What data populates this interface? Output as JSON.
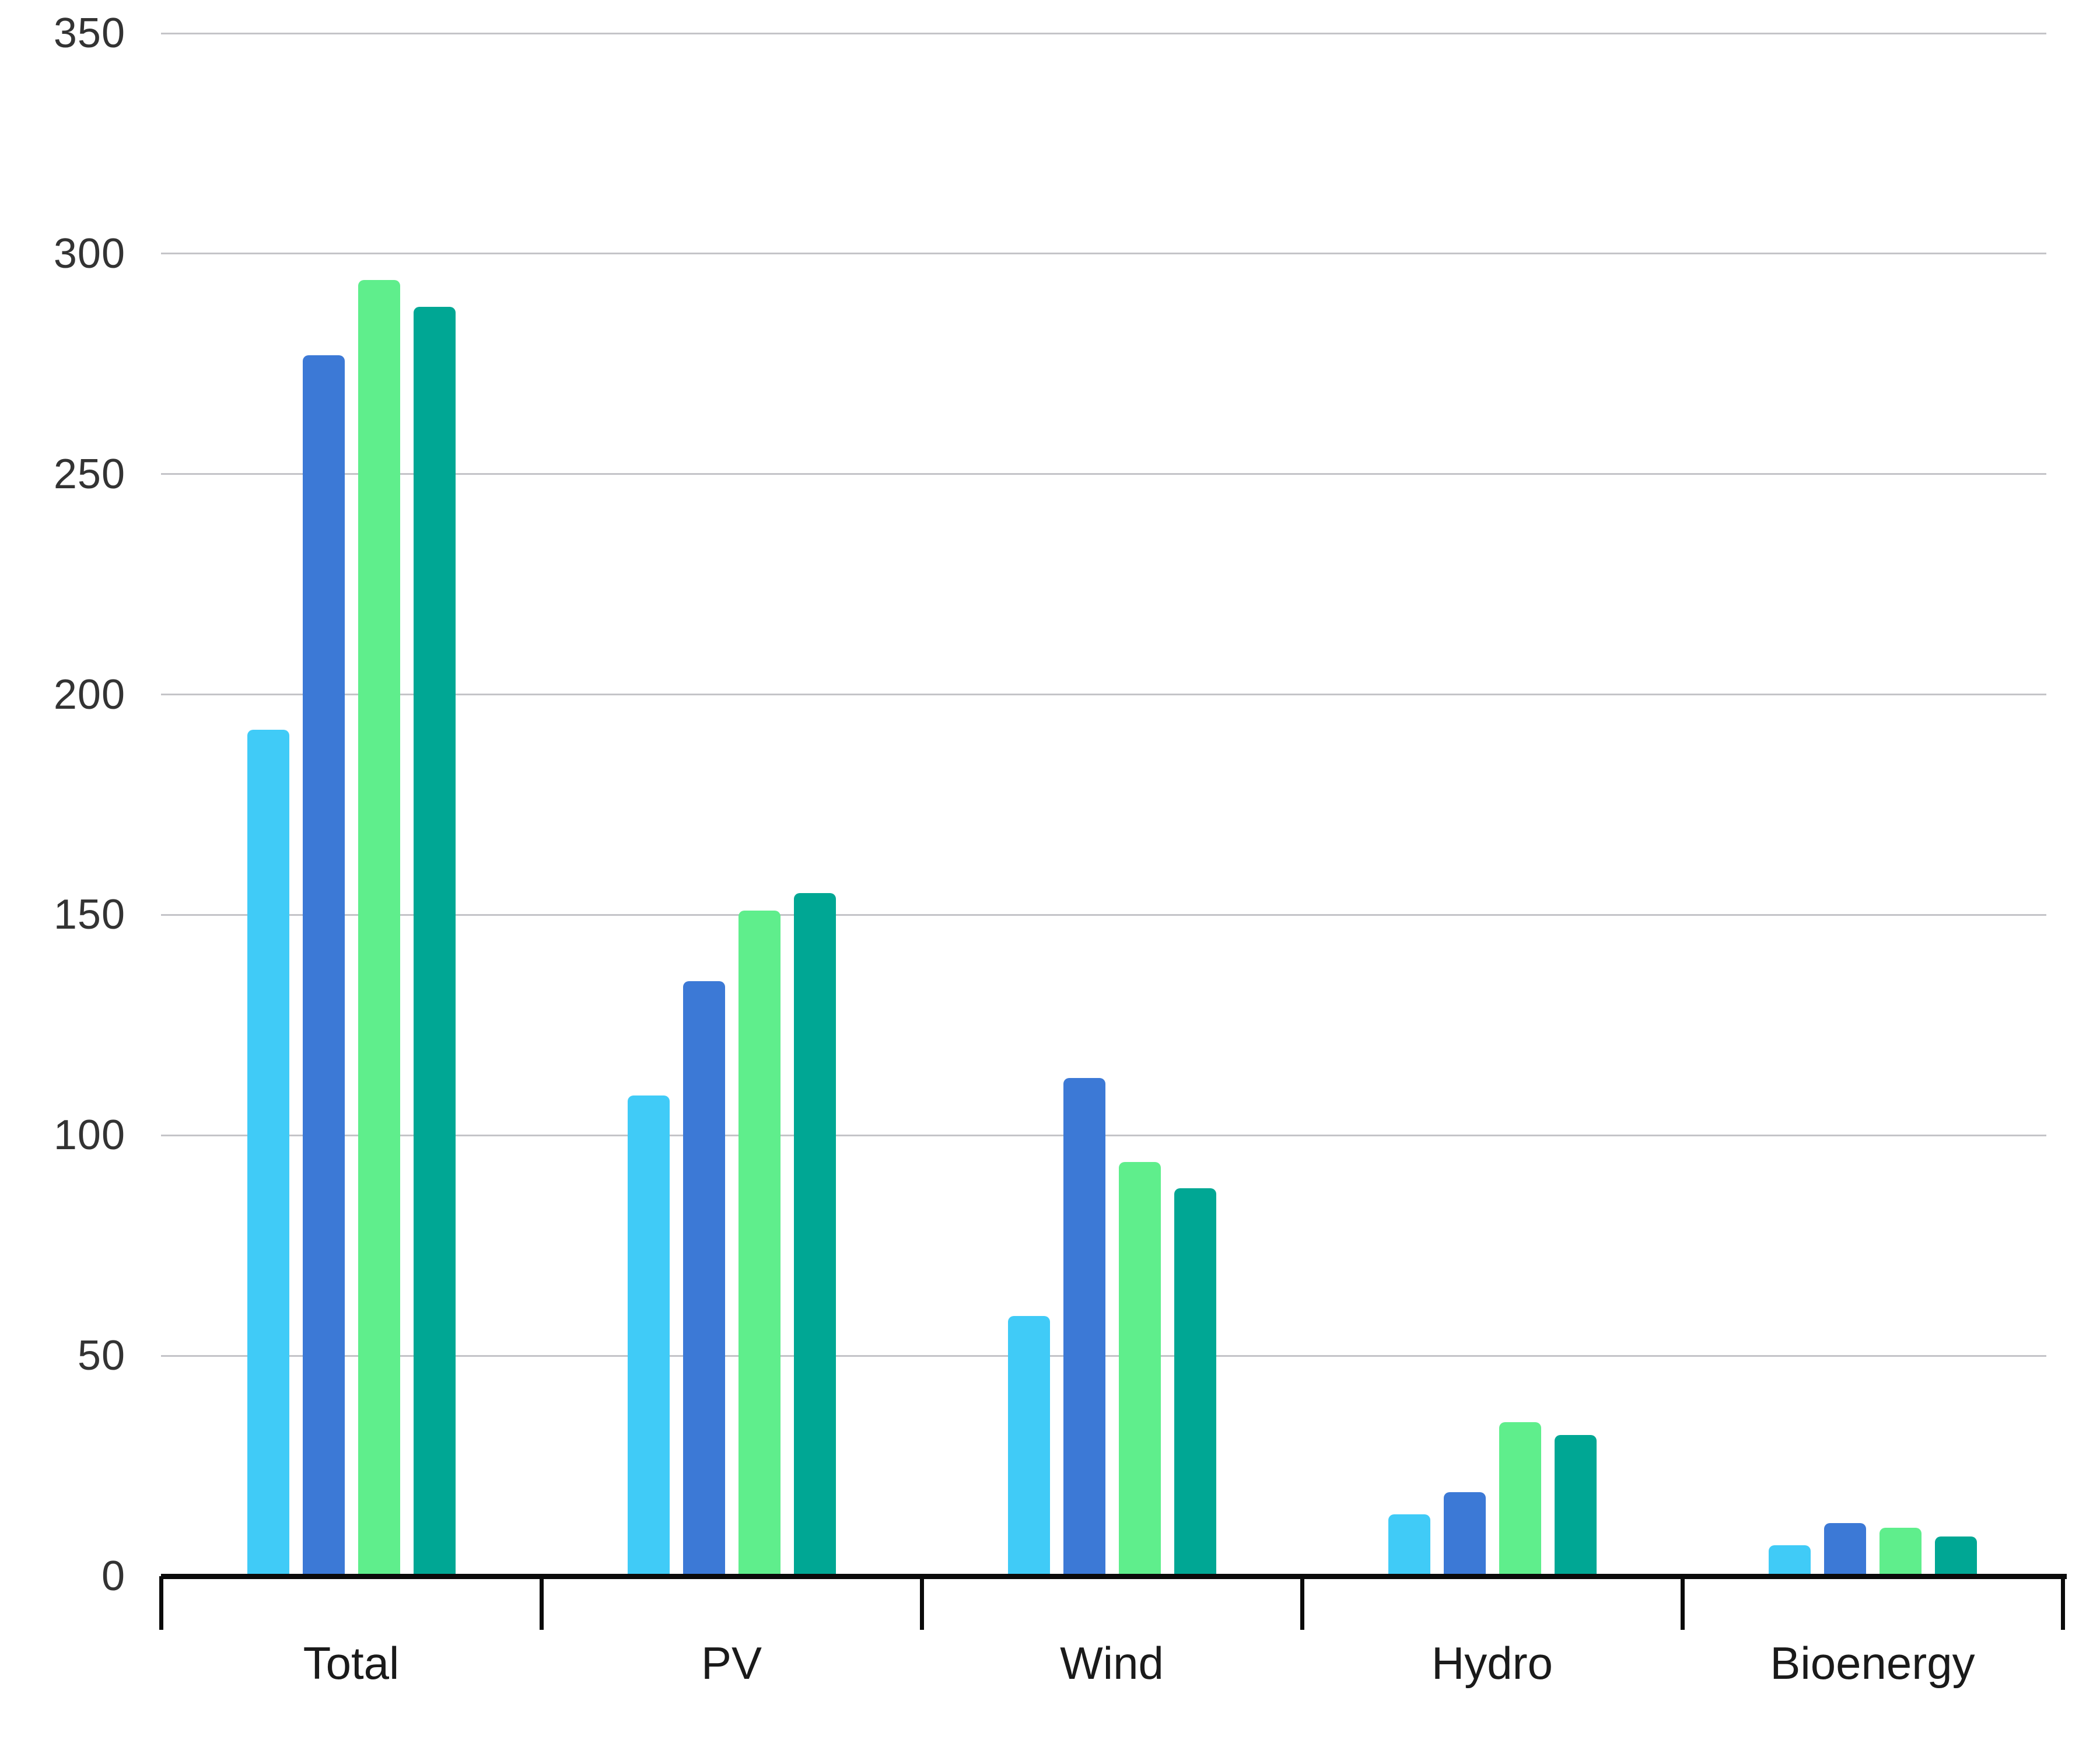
{
  "chart_data": {
    "type": "bar",
    "title": "",
    "subtitle": "",
    "xlabel": "",
    "ylabel": "",
    "categories": [
      "Total",
      "PV",
      "Wind",
      "Hydro",
      "Bioenergy"
    ],
    "series": [
      {
        "name": "series-1-light-blue",
        "color": "#40CBF7",
        "values": [
          192,
          109,
          59,
          14,
          7
        ]
      },
      {
        "name": "series-2-blue",
        "color": "#3C79D6",
        "values": [
          277,
          135,
          113,
          19,
          12
        ]
      },
      {
        "name": "series-3-green",
        "color": "#5FEE8C",
        "values": [
          294,
          151,
          94,
          35,
          11
        ]
      },
      {
        "name": "series-4-teal",
        "color": "#00A794",
        "values": [
          288,
          155,
          88,
          32,
          9
        ]
      }
    ],
    "ylim": [
      0,
      350
    ],
    "y_ticks": [
      0,
      50,
      100,
      150,
      200,
      250,
      300,
      350
    ],
    "grid": "horizontal",
    "legend": "none"
  },
  "style": {
    "gridline_color": "#c4c4c8",
    "axis_color": "#0a0a0a",
    "tick_label_color": "#333333",
    "category_label_color": "#1a1a1a"
  }
}
